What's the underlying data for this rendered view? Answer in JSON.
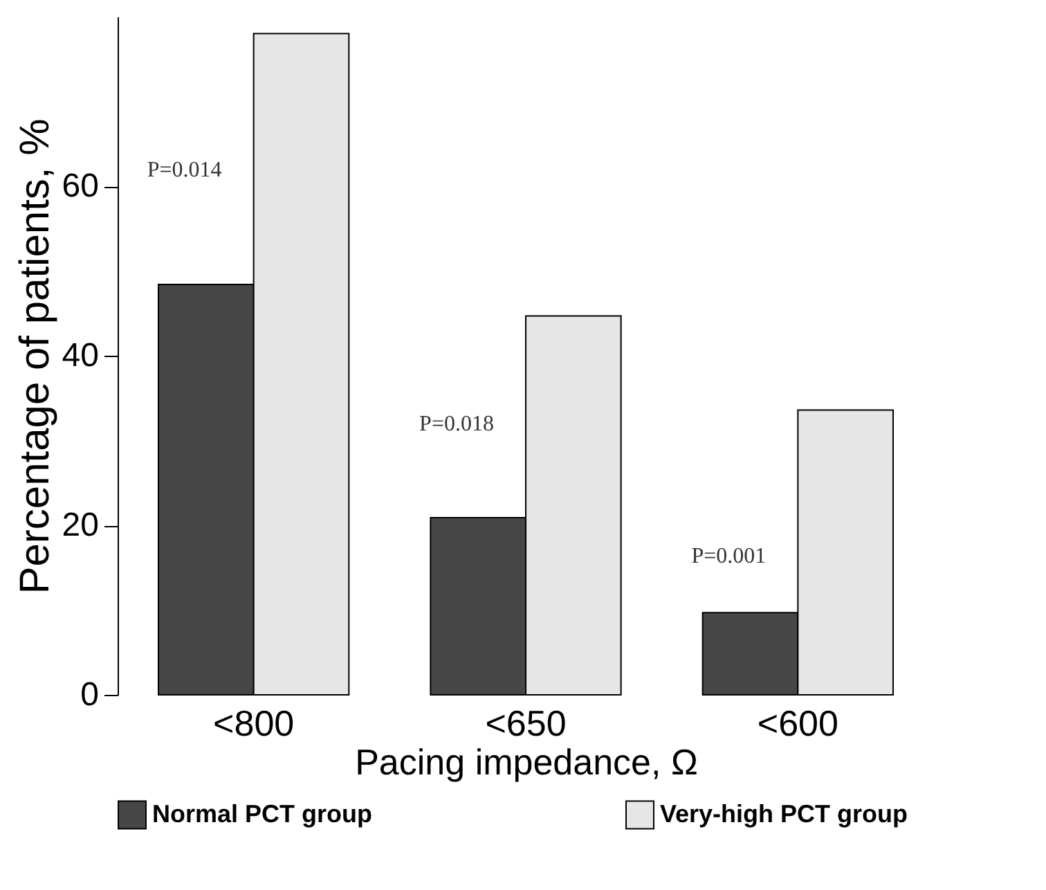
{
  "chart_data": {
    "type": "bar",
    "xlabel": "Pacing impedance, Ω",
    "ylabel": "Percentage of patients, %",
    "categories": [
      "<800",
      "<650",
      "<600"
    ],
    "series": [
      {
        "name": "Normal PCT group",
        "color": "#474747",
        "values": [
          48.4,
          20.9,
          9.7
        ]
      },
      {
        "name": "Very-high PCT group",
        "color": "#e6e6e6",
        "values": [
          78.0,
          44.7,
          33.6
        ]
      }
    ],
    "ylim": [
      0,
      80
    ],
    "yticks": [
      0,
      20,
      40,
      60
    ],
    "grid": false,
    "legend": "bottom",
    "annotations": [
      {
        "text": "P=0.014",
        "x": "<800",
        "y": 62
      },
      {
        "text": "P=0.018",
        "x": "<650",
        "y": 32
      },
      {
        "text": "P=0.001",
        "x": "<600",
        "y": 16.4
      }
    ]
  }
}
